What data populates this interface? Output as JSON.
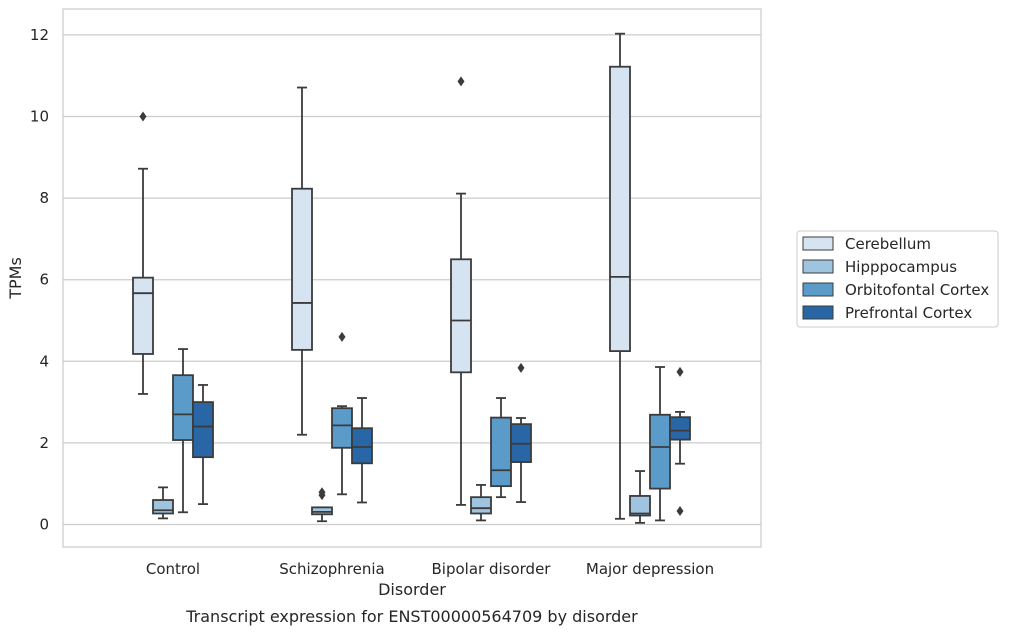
{
  "caption": "Transcript expression for ENST00000564709 by disorder",
  "chart_data": {
    "type": "box",
    "xlabel": "Disorder",
    "ylabel": "TPMs",
    "ylim": [
      -0.6,
      12.65
    ],
    "yticks": [
      0,
      2,
      4,
      6,
      8,
      10,
      12
    ],
    "grid": "horizontal",
    "legend_position": "right",
    "categories": [
      "Control",
      "Schizophrenia",
      "Bipolar disorder",
      "Major depression"
    ],
    "series": [
      {
        "name": "Cerebellum",
        "color": "#d6e4f2",
        "boxes": [
          {
            "whisker_low": 3.2,
            "q1": 4.18,
            "median": 5.67,
            "q3": 6.05,
            "whisker_high": 8.72,
            "outliers": [
              10.0
            ]
          },
          {
            "whisker_low": 2.2,
            "q1": 4.28,
            "median": 5.43,
            "q3": 8.23,
            "whisker_high": 10.71,
            "outliers": []
          },
          {
            "whisker_low": 0.48,
            "q1": 3.73,
            "median": 5.0,
            "q3": 6.5,
            "whisker_high": 8.11,
            "outliers": [
              10.86
            ]
          },
          {
            "whisker_low": 0.14,
            "q1": 4.25,
            "median": 6.07,
            "q3": 11.22,
            "whisker_high": 12.03,
            "outliers": []
          }
        ]
      },
      {
        "name": "Hipppocampus",
        "color": "#9ec4df",
        "boxes": [
          {
            "whisker_low": 0.15,
            "q1": 0.27,
            "median": 0.35,
            "q3": 0.6,
            "whisker_high": 0.91,
            "outliers": []
          },
          {
            "whisker_low": 0.08,
            "q1": 0.25,
            "median": 0.31,
            "q3": 0.42,
            "whisker_high": 0.42,
            "outliers": [
              0.72,
              0.79
            ]
          },
          {
            "whisker_low": 0.1,
            "q1": 0.27,
            "median": 0.4,
            "q3": 0.67,
            "whisker_high": 0.97,
            "outliers": []
          },
          {
            "whisker_low": 0.04,
            "q1": 0.22,
            "median": 0.27,
            "q3": 0.7,
            "whisker_high": 1.31,
            "outliers": []
          }
        ]
      },
      {
        "name": "Orbitofontal Cortex",
        "color": "#5b9bc9",
        "boxes": [
          {
            "whisker_low": 0.3,
            "q1": 2.07,
            "median": 2.7,
            "q3": 3.66,
            "whisker_high": 4.3,
            "outliers": []
          },
          {
            "whisker_low": 0.74,
            "q1": 1.88,
            "median": 2.43,
            "q3": 2.85,
            "whisker_high": 2.9,
            "outliers": [
              4.6
            ]
          },
          {
            "whisker_low": 0.67,
            "q1": 0.94,
            "median": 1.33,
            "q3": 2.62,
            "whisker_high": 3.1,
            "outliers": []
          },
          {
            "whisker_low": 0.1,
            "q1": 0.88,
            "median": 1.9,
            "q3": 2.69,
            "whisker_high": 3.86,
            "outliers": []
          }
        ]
      },
      {
        "name": "Prefrontal Cortex",
        "color": "#2866a6",
        "boxes": [
          {
            "whisker_low": 0.5,
            "q1": 1.65,
            "median": 2.4,
            "q3": 3.0,
            "whisker_high": 3.42,
            "outliers": []
          },
          {
            "whisker_low": 0.54,
            "q1": 1.5,
            "median": 1.9,
            "q3": 2.36,
            "whisker_high": 3.1,
            "outliers": []
          },
          {
            "whisker_low": 0.55,
            "q1": 1.53,
            "median": 1.98,
            "q3": 2.46,
            "whisker_high": 2.61,
            "outliers": [
              3.84
            ]
          },
          {
            "whisker_low": 1.49,
            "q1": 2.08,
            "median": 2.3,
            "q3": 2.63,
            "whisker_high": 2.76,
            "outliers": [
              0.33,
              3.74
            ]
          }
        ]
      }
    ]
  }
}
